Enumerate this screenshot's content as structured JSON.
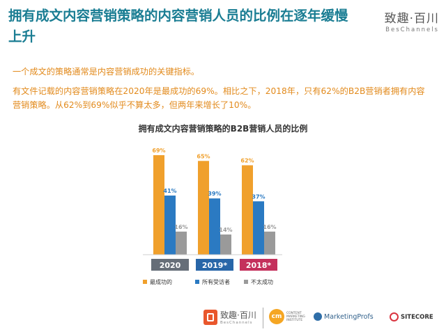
{
  "header": {
    "title": "拥有成文内容营销策略的内容营销人员的比例在逐年缓慢上升",
    "logo_cn": "致趣·百川",
    "logo_en": "BesChannels"
  },
  "intro": "一个成文的策略通常是内容营销成功的关键指标。",
  "paragraph": "有文件记载的内容营销策略在2020年是最成功的69%。相比之下，2018年，只有62%的B2B营销者拥有内容营销策略。从62%到69%似乎不算太多，但两年来增长了10%。",
  "chart_data": {
    "type": "bar",
    "title": "拥有成文内容营销策略的B2B营销人员的比例",
    "categories": [
      "2020",
      "2019*",
      "2018*"
    ],
    "series": [
      {
        "name": "最成功的",
        "values": [
          69,
          65,
          62
        ],
        "labels": [
          "69%",
          "65%",
          "62%"
        ],
        "color": "#f0a02c"
      },
      {
        "name": "所有受访者",
        "values": [
          41,
          39,
          37
        ],
        "labels": [
          "41%",
          "39%",
          "37%"
        ],
        "color": "#2b7ac2"
      },
      {
        "name": "不太成功",
        "values": [
          16,
          14,
          16
        ],
        "labels": [
          "16%",
          "14%",
          "16%"
        ],
        "color": "#9a9a9a"
      }
    ],
    "category_colors": [
      "#666e78",
      "#2866a8",
      "#c4305c"
    ],
    "ylim": [
      0,
      75
    ],
    "grid": false,
    "legend_position": "bottom"
  },
  "footer": {
    "logo1_cn": "致趣·百川",
    "logo1_en": "BesChannels",
    "cmi_mark": "cm",
    "cmi_text": "CONTENT MARKETING INSTITUTE",
    "marketingprofs": "MarketingProfs",
    "sitecore": "SITECORE"
  }
}
